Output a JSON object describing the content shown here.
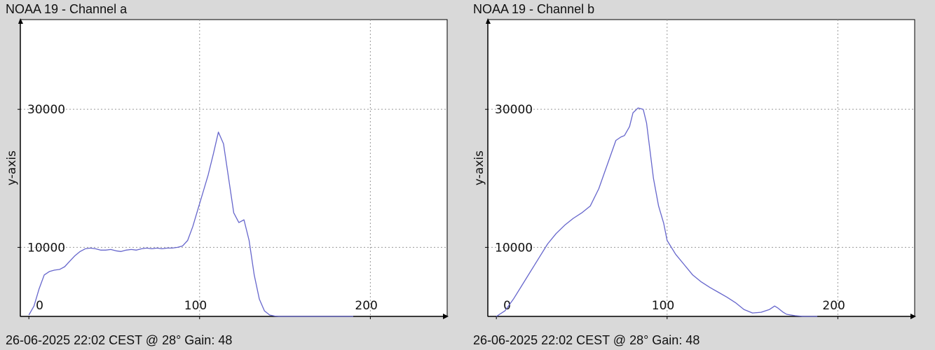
{
  "chart_data": [
    {
      "type": "line",
      "title": "NOAA 19 - Channel a",
      "ylabel": "y-axis",
      "xlabel": "",
      "footer": "26-06-2025 22:02 CEST @ 28° Gain: 48",
      "xlim": [
        -5,
        245
      ],
      "ylim": [
        0,
        43000
      ],
      "xticks": [
        0,
        100,
        200
      ],
      "yticks": [
        10000,
        30000
      ],
      "grid": true,
      "line_color": "#6666cc",
      "series": [
        {
          "x": [
            0,
            3,
            6,
            9,
            12,
            15,
            18,
            21,
            24,
            27,
            30,
            33,
            36,
            39,
            42,
            45,
            48,
            51,
            54,
            57,
            60,
            63,
            66,
            69,
            72,
            75,
            78,
            81,
            84,
            87,
            90,
            93,
            96,
            99,
            102,
            105,
            108,
            111,
            114,
            117,
            120,
            123,
            126,
            129,
            132,
            135,
            138,
            141,
            144,
            147,
            150,
            153,
            156,
            159,
            162,
            165,
            168,
            171,
            174,
            177,
            180,
            183,
            186,
            189,
            190
          ],
          "y": [
            200,
            1500,
            4000,
            6000,
            6500,
            6700,
            6800,
            7200,
            8000,
            8800,
            9400,
            9800,
            9900,
            9800,
            9600,
            9600,
            9700,
            9500,
            9400,
            9600,
            9700,
            9600,
            9800,
            9900,
            9800,
            9900,
            9800,
            9900,
            9900,
            10000,
            10200,
            11000,
            13000,
            15500,
            18000,
            20500,
            23500,
            26700,
            25000,
            20000,
            15000,
            13600,
            14000,
            11000,
            6000,
            2500,
            800,
            200,
            50,
            0,
            0,
            0,
            0,
            0,
            0,
            0,
            0,
            0,
            0,
            0,
            0,
            0,
            0,
            0,
            0
          ]
        }
      ]
    },
    {
      "type": "line",
      "title": "NOAA 19 - Channel b",
      "ylabel": "y-axis",
      "xlabel": "",
      "footer": "26-06-2025 22:02 CEST @ 28° Gain: 48",
      "xlim": [
        -5,
        245
      ],
      "ylim": [
        0,
        43000
      ],
      "xticks": [
        0,
        100,
        200
      ],
      "yticks": [
        10000,
        30000
      ],
      "grid": true,
      "line_color": "#6666cc",
      "series": [
        {
          "x": [
            0,
            5,
            10,
            15,
            20,
            25,
            30,
            35,
            40,
            45,
            50,
            55,
            60,
            65,
            70,
            73,
            75,
            78,
            80,
            83,
            86,
            88,
            90,
            92,
            95,
            98,
            100,
            105,
            110,
            115,
            120,
            125,
            130,
            135,
            140,
            145,
            150,
            155,
            160,
            163,
            165,
            168,
            170,
            175,
            180,
            185,
            188
          ],
          "y": [
            0,
            800,
            2500,
            4500,
            6500,
            8500,
            10500,
            12000,
            13200,
            14200,
            15000,
            16000,
            18500,
            22000,
            25500,
            26000,
            26200,
            27500,
            29500,
            30200,
            30000,
            28000,
            24000,
            20000,
            16000,
            13500,
            11000,
            9000,
            7500,
            6000,
            5000,
            4200,
            3500,
            2800,
            2000,
            1000,
            500,
            600,
            1000,
            1500,
            1200,
            600,
            300,
            100,
            0,
            0,
            0
          ]
        }
      ]
    }
  ]
}
